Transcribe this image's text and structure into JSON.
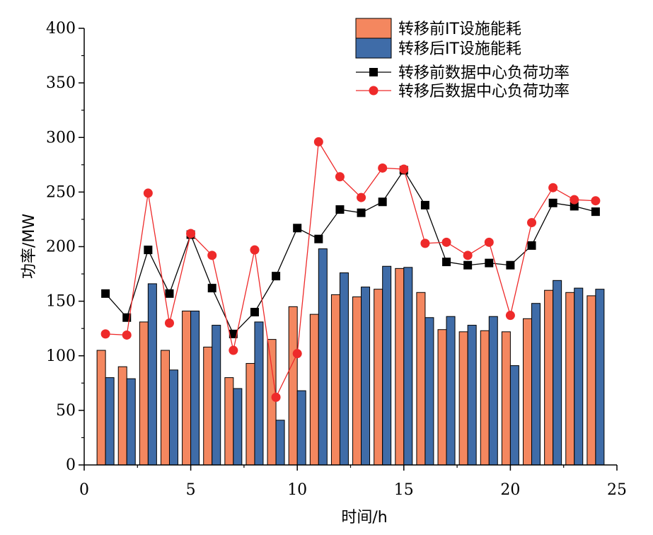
{
  "chart_data": {
    "type": "bar+line",
    "title": "",
    "xlabel": "时间/h",
    "ylabel": "功率/MW",
    "xlim": [
      0,
      25
    ],
    "ylim": [
      0,
      400
    ],
    "xticks": [
      0,
      5,
      10,
      15,
      20,
      25
    ],
    "yticks": [
      0,
      50,
      100,
      150,
      200,
      250,
      300,
      350,
      400
    ],
    "x": [
      1,
      2,
      3,
      4,
      5,
      6,
      7,
      8,
      9,
      10,
      11,
      12,
      13,
      14,
      15,
      16,
      17,
      18,
      19,
      20,
      21,
      22,
      23,
      24
    ],
    "bar_series": [
      {
        "name": "转移前IT设施能耗",
        "color": "#f4875f",
        "values": [
          105,
          90,
          131,
          105,
          141,
          108,
          80,
          93,
          115,
          145,
          138,
          156,
          154,
          161,
          180,
          158,
          124,
          122,
          123,
          122,
          134,
          160,
          158,
          155
        ]
      },
      {
        "name": "转移后IT设施能耗",
        "color": "#3f6ca8",
        "values": [
          80,
          79,
          166,
          87,
          141,
          128,
          70,
          131,
          41,
          68,
          198,
          176,
          163,
          182,
          181,
          135,
          136,
          128,
          136,
          91,
          148,
          169,
          162,
          161
        ]
      }
    ],
    "line_series": [
      {
        "name": "转移前数据中心负荷功率",
        "color": "#000000",
        "marker": "square",
        "values": [
          157,
          135,
          197,
          157,
          211,
          162,
          120,
          140,
          173,
          217,
          207,
          234,
          231,
          241,
          270,
          238,
          186,
          183,
          185,
          183,
          201,
          240,
          237,
          232
        ]
      },
      {
        "name": "转移后数据中心负荷功率",
        "color": "#ee2a2a",
        "marker": "circle",
        "values": [
          120,
          119,
          249,
          130,
          212,
          192,
          105,
          197,
          62,
          102,
          296,
          264,
          245,
          272,
          271,
          203,
          204,
          192,
          204,
          137,
          222,
          254,
          243,
          242
        ]
      }
    ],
    "legend_position": "top-right"
  }
}
